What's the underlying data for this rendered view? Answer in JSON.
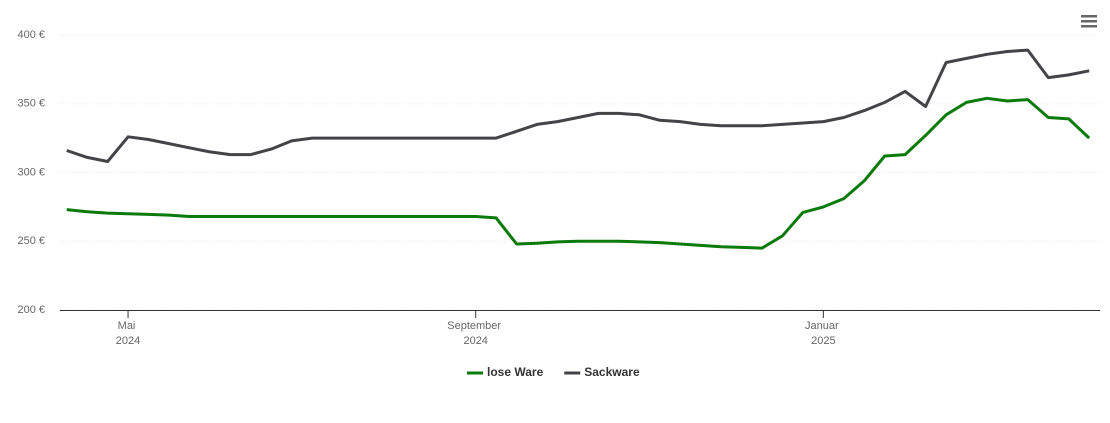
{
  "chart_data": {
    "type": "line",
    "categories": [
      null,
      null,
      null,
      "Mai 2024",
      null,
      null,
      null,
      null,
      null,
      null,
      null,
      null,
      null,
      null,
      null,
      null,
      null,
      null,
      null,
      null,
      "September 2024",
      null,
      null,
      null,
      null,
      null,
      null,
      null,
      null,
      null,
      null,
      null,
      null,
      null,
      null,
      null,
      null,
      "Januar 2025",
      null,
      null,
      null,
      null,
      null,
      null,
      null,
      null,
      null,
      null,
      null,
      null,
      null
    ],
    "series": [
      {
        "name": "lose Ware",
        "color": "#0a7a0a",
        "values": [
          273,
          271.5,
          270.5,
          270,
          269.5,
          269,
          268,
          268,
          268,
          268,
          268,
          268,
          268,
          268,
          268,
          268,
          268,
          268,
          268,
          268,
          268,
          267,
          248,
          248.5,
          249.5,
          250,
          250,
          250,
          249.5,
          249,
          248,
          247,
          246,
          245.5,
          245,
          254,
          271,
          275,
          281,
          294,
          312,
          313,
          327,
          342,
          351,
          354,
          352,
          353,
          340,
          339,
          325
        ]
      },
      {
        "name": "Sackware",
        "color": "#434348",
        "values": [
          316,
          311,
          308,
          326,
          324,
          321,
          318,
          315,
          313,
          313,
          317,
          323,
          325,
          325,
          325,
          325,
          325,
          325,
          325,
          325,
          325,
          325,
          330,
          335,
          337,
          340,
          343,
          343,
          342,
          338,
          337,
          335,
          334,
          334,
          334,
          335,
          336,
          337,
          340,
          345,
          351,
          359,
          348,
          380,
          383,
          386,
          388,
          389,
          369,
          371,
          374
        ]
      }
    ],
    "ylim": [
      200,
      400
    ],
    "yticks": [
      {
        "value": 200,
        "label": "200 €"
      },
      {
        "value": 250,
        "label": "250 €"
      },
      {
        "value": 300,
        "label": "300 €"
      },
      {
        "value": 350,
        "label": "350 €"
      },
      {
        "value": 400,
        "label": "400 €"
      }
    ],
    "grid": true,
    "legend": "bottom"
  }
}
